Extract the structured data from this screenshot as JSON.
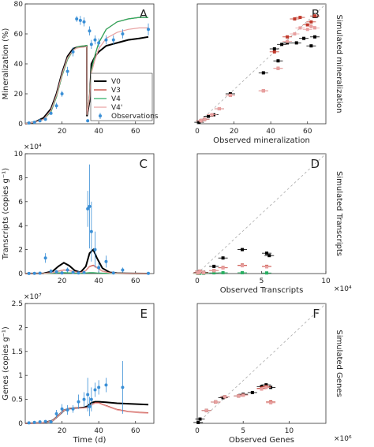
{
  "chart_data": [
    {
      "panel": "A",
      "type": "line",
      "ylabel": "Mineralization (%)",
      "xlabel": "",
      "xlim": [
        0,
        70
      ],
      "ylim": [
        0,
        80
      ],
      "xticks": [
        "20",
        "40",
        "60"
      ],
      "yticks": [
        "0",
        "20",
        "40",
        "60",
        "80"
      ],
      "legend": {
        "position": "lower-right",
        "entries": [
          "V0",
          "V3",
          "V4",
          "V4'",
          "Observations"
        ]
      },
      "series": [
        {
          "name": "V0",
          "color": "#000000",
          "x": [
            0,
            5,
            10,
            14,
            17,
            20,
            23,
            26,
            28,
            30,
            32,
            33.5,
            33.6,
            35,
            36,
            38,
            40,
            44,
            50,
            56,
            62,
            67
          ],
          "y": [
            0,
            1,
            4,
            10,
            20,
            34,
            45,
            50,
            51,
            51.5,
            51.6,
            51.7,
            5,
            15,
            40,
            45,
            48,
            52,
            54,
            56,
            57,
            58
          ]
        },
        {
          "name": "V3",
          "color": "#c0392b",
          "x": [
            0,
            5,
            10,
            14,
            17,
            20,
            23,
            26,
            28,
            30,
            32,
            33.5,
            33.6,
            35,
            36,
            38,
            40,
            44,
            50,
            56,
            62,
            67
          ],
          "y": [
            0,
            1,
            3,
            8,
            18,
            32,
            43,
            49,
            51,
            51.8,
            52,
            52.3,
            6,
            18,
            36,
            46,
            54,
            63,
            68,
            70,
            71,
            71
          ]
        },
        {
          "name": "V4",
          "color": "#27ae60",
          "x": [
            0,
            5,
            10,
            14,
            17,
            20,
            23,
            26,
            28,
            30,
            32,
            33.5,
            33.6,
            35,
            36,
            38,
            40,
            44,
            50,
            56,
            62,
            67
          ],
          "y": [
            0,
            1,
            3,
            8,
            18,
            32,
            43,
            49,
            51,
            51.8,
            52,
            52.3,
            6,
            18,
            36,
            46,
            54,
            63,
            68,
            70,
            71,
            71
          ]
        },
        {
          "name": "V4'",
          "color": "#e8a0a0",
          "x": [
            0,
            5,
            10,
            14,
            17,
            20,
            23,
            26,
            28,
            30,
            32,
            33.5,
            33.6,
            35,
            36,
            38,
            40,
            44,
            50,
            56,
            62,
            67
          ],
          "y": [
            0,
            1,
            3,
            9,
            19,
            33,
            44,
            49,
            50.5,
            51,
            51.2,
            51.5,
            6,
            17,
            34,
            43,
            50,
            57,
            61,
            63,
            64,
            64
          ]
        },
        {
          "name": "Observations",
          "color": "#3a8fd6",
          "x": [
            2,
            5,
            8,
            11,
            14,
            17,
            20,
            23,
            26,
            28,
            30,
            32,
            34,
            35,
            36,
            38,
            40,
            44,
            48,
            53,
            67
          ],
          "y": [
            0.5,
            1,
            2,
            3,
            7,
            12,
            20,
            35,
            48,
            70,
            69,
            68,
            2,
            62,
            53,
            56,
            54,
            56,
            56,
            60,
            63
          ],
          "err": [
            0.5,
            0.5,
            1,
            1,
            1,
            2,
            2,
            3,
            3,
            2,
            3,
            3,
            1,
            3,
            3,
            3,
            3,
            3,
            3,
            3,
            4
          ]
        }
      ]
    },
    {
      "panel": "B",
      "type": "scatter",
      "ylabel": "Simulated mineralization",
      "xlabel": "Observed mineralization",
      "xlim": [
        0,
        70
      ],
      "ylim": [
        0,
        80
      ],
      "xticks": [
        "0",
        "20",
        "40",
        "60"
      ],
      "series": [
        {
          "name": "V0",
          "color": "#000000",
          "x": [
            1,
            2,
            4,
            6,
            9,
            12,
            18,
            36,
            42,
            44,
            46,
            49,
            54,
            58,
            62,
            64
          ],
          "y": [
            1,
            2,
            3,
            5,
            6,
            10,
            20,
            34,
            50,
            42,
            53,
            54,
            54,
            57,
            52,
            58
          ]
        },
        {
          "name": "V3",
          "color": "#c0392b",
          "x": [
            2,
            4,
            8,
            12,
            18,
            36,
            42,
            44,
            49,
            53,
            56,
            60,
            62,
            64
          ],
          "y": [
            2,
            3,
            6,
            10,
            19,
            22,
            48,
            37,
            58,
            70,
            71,
            66,
            68,
            72
          ]
        },
        {
          "name": "V4'",
          "color": "#e8a0a0",
          "x": [
            2,
            4,
            8,
            12,
            18,
            36,
            44,
            49,
            53,
            56,
            60,
            62,
            64
          ],
          "y": [
            2,
            3,
            6,
            10,
            19,
            22,
            37,
            55,
            60,
            64,
            63,
            65,
            64
          ]
        }
      ]
    },
    {
      "panel": "C",
      "type": "line",
      "ylabel": "Transcripts (copies g⁻¹)",
      "xlabel": "",
      "multiplier": "×10⁴",
      "xlim": [
        0,
        70
      ],
      "ylim": [
        0,
        100000
      ],
      "xticks": [
        "20",
        "40",
        "60"
      ],
      "yticks": [
        "0",
        "2",
        "4",
        "6",
        "8",
        "10"
      ],
      "series": [
        {
          "name": "V0",
          "color": "#000000",
          "x": [
            0,
            10,
            15,
            18,
            21,
            24,
            27,
            30,
            33,
            35,
            37,
            39,
            42,
            46,
            50,
            55,
            60,
            67
          ],
          "y": [
            0,
            200,
            2000,
            6000,
            9000,
            6500,
            2500,
            1000,
            6000,
            17000,
            20000,
            13000,
            4500,
            1000,
            300,
            100,
            50,
            0
          ]
        },
        {
          "name": "V3",
          "color": "#c0392b",
          "x": [
            0,
            10,
            15,
            18,
            21,
            24,
            27,
            30,
            33,
            35,
            37,
            39,
            42,
            46,
            50,
            55,
            60,
            67
          ],
          "y": [
            0,
            100,
            800,
            2000,
            3000,
            2500,
            1500,
            800,
            2500,
            6000,
            7000,
            5000,
            2000,
            600,
            200,
            100,
            50,
            0
          ]
        },
        {
          "name": "V4",
          "color": "#27ae60",
          "x": [
            0,
            10,
            15,
            18,
            21,
            24,
            27,
            30,
            33,
            35,
            37,
            39,
            42,
            46,
            50,
            55,
            60,
            67
          ],
          "y": [
            0,
            50,
            300,
            600,
            800,
            600,
            400,
            300,
            500,
            700,
            700,
            500,
            300,
            150,
            80,
            40,
            20,
            0
          ]
        },
        {
          "name": "V4'",
          "color": "#e8a0a0",
          "x": [
            0,
            10,
            15,
            18,
            21,
            24,
            27,
            30,
            33,
            35,
            37,
            39,
            42,
            46,
            50,
            55,
            60,
            67
          ],
          "y": [
            0,
            100,
            700,
            1800,
            2800,
            2300,
            1400,
            700,
            2300,
            5600,
            6500,
            4700,
            1800,
            550,
            180,
            90,
            40,
            0
          ]
        },
        {
          "name": "Observations",
          "color": "#3a8fd6",
          "x": [
            2,
            5,
            8,
            11,
            14,
            17,
            20,
            23,
            26,
            29,
            32,
            34,
            35,
            36,
            38,
            40,
            44,
            48,
            53,
            67
          ],
          "y": [
            100,
            200,
            300,
            13000,
            2000,
            1500,
            500,
            3000,
            1000,
            500,
            800,
            54000,
            56000,
            35000,
            20000,
            5000,
            10000,
            500,
            3000,
            200
          ],
          "err": [
            200,
            200,
            300,
            4000,
            1500,
            1500,
            800,
            2000,
            1000,
            800,
            1000,
            15000,
            35000,
            25000,
            15000,
            4000,
            5000,
            1000,
            2000,
            500
          ]
        }
      ]
    },
    {
      "panel": "D",
      "type": "scatter",
      "ylabel": "Simulated Transcripts",
      "xlabel": "Observed Transcripts",
      "multiplier": "×10⁴",
      "xlim": [
        0,
        100000
      ],
      "ylim": [
        0,
        100000
      ],
      "xticks": [
        "0",
        "5",
        "10"
      ],
      "series": [
        {
          "name": "V0",
          "color": "#000000",
          "x": [
            500,
            1000,
            2000,
            5000,
            13000,
            20000,
            35000,
            54000,
            56000
          ],
          "y": [
            500,
            1000,
            2000,
            1000,
            6000,
            13000,
            20000,
            17000,
            15000
          ]
        },
        {
          "name": "V3",
          "color": "#c0392b",
          "x": [
            500,
            1000,
            2000,
            5000,
            13000,
            20000,
            35000,
            54000
          ],
          "y": [
            300,
            800,
            2000,
            700,
            2500,
            5000,
            7000,
            6000
          ]
        },
        {
          "name": "V4",
          "color": "#27ae60",
          "x": [
            500,
            1000,
            2000,
            5000,
            13000,
            20000,
            35000,
            54000
          ],
          "y": [
            100,
            200,
            300,
            200,
            600,
            700,
            700,
            500
          ]
        },
        {
          "name": "V4'",
          "color": "#e8a0a0",
          "x": [
            500,
            1000,
            2000,
            5000,
            13000,
            20000,
            35000,
            54000
          ],
          "y": [
            300,
            700,
            1800,
            600,
            2300,
            4700,
            6500,
            5600
          ]
        }
      ]
    },
    {
      "panel": "E",
      "type": "line",
      "ylabel": "Genes (copies g⁻¹)",
      "xlabel": "Time (d)",
      "multiplier": "×10⁷",
      "xlim": [
        0,
        70
      ],
      "ylim": [
        0,
        25000000
      ],
      "xticks": [
        "20",
        "40",
        "60"
      ],
      "yticks": [
        "0",
        "0.5",
        "1",
        "1.5",
        "2",
        "2.5"
      ],
      "series": [
        {
          "name": "V0",
          "color": "#000000",
          "x": [
            0,
            10,
            15,
            18,
            21,
            24,
            28,
            32,
            34,
            36,
            38,
            40,
            44,
            50,
            56,
            62,
            67
          ],
          "y": [
            0,
            100000,
            600000,
            1600000,
            2700000,
            3100000,
            3200000,
            3300000,
            3600000,
            4300000,
            4500000,
            4500000,
            4400000,
            4200000,
            4100000,
            4000000,
            3900000
          ]
        },
        {
          "name": "V3",
          "color": "#c0392b",
          "x": [
            0,
            10,
            15,
            18,
            21,
            24,
            28,
            32,
            34,
            36,
            38,
            40,
            44,
            50,
            56,
            62,
            67
          ],
          "y": [
            0,
            100000,
            600000,
            1600000,
            2700000,
            3100000,
            3200000,
            3200000,
            3300000,
            3800000,
            4300000,
            4300000,
            3700000,
            2900000,
            2500000,
            2300000,
            2200000
          ]
        },
        {
          "name": "V4'",
          "color": "#e8a0a0",
          "x": [
            0,
            10,
            15,
            18,
            21,
            24,
            28,
            32,
            34,
            36,
            38,
            40,
            44,
            50,
            56,
            62,
            67
          ],
          "y": [
            0,
            100000,
            600000,
            1600000,
            2700000,
            3100000,
            3200000,
            3200000,
            3300000,
            3800000,
            4200000,
            4200000,
            3600000,
            2800000,
            2400000,
            2200000,
            2100000
          ]
        },
        {
          "name": "Observations",
          "color": "#3a8fd6",
          "x": [
            2,
            5,
            8,
            11,
            14,
            17,
            20,
            23,
            26,
            29,
            32,
            34,
            35,
            36,
            38,
            40,
            44,
            53
          ],
          "y": [
            100000,
            200000,
            300000,
            400000,
            300000,
            2000000,
            3000000,
            2800000,
            3000000,
            4500000,
            5000000,
            6000000,
            3500000,
            5000000,
            7000000,
            7500000,
            8000000,
            7500000
          ],
          "err": [
            100000,
            100000,
            200000,
            200000,
            200000,
            800000,
            1000000,
            1000000,
            800000,
            1500000,
            1500000,
            3500000,
            2000000,
            2500000,
            1500000,
            1500000,
            1500000,
            5500000
          ]
        }
      ]
    },
    {
      "panel": "F",
      "type": "scatter",
      "ylabel": "Simulated Genes",
      "xlabel": "Observed Genes",
      "multiplier": "×10⁶",
      "xlim": [
        0,
        14000000
      ],
      "ylim": [
        0,
        14000000
      ],
      "xticks": [
        "0",
        "5",
        "10"
      ],
      "series": [
        {
          "name": "V0",
          "color": "#000000",
          "x": [
            100000,
            300000,
            1000000,
            2000000,
            2800000,
            3000000,
            4500000,
            5000000,
            6000000,
            7000000,
            7500000,
            8000000
          ],
          "y": [
            100000,
            500000,
            1500000,
            2500000,
            3000000,
            3100000,
            3200000,
            3400000,
            3600000,
            4300000,
            4500000,
            4200000
          ]
        },
        {
          "name": "V3",
          "color": "#c0392b",
          "x": [
            1000000,
            2000000,
            3000000,
            4500000,
            5000000,
            7000000,
            7500000,
            8000000
          ],
          "y": [
            1500000,
            2500000,
            3100000,
            3200000,
            3300000,
            4100000,
            4300000,
            2500000
          ]
        },
        {
          "name": "V4'",
          "color": "#e8a0a0",
          "x": [
            1000000,
            2000000,
            3000000,
            4500000,
            5000000,
            7000000,
            7500000,
            8000000
          ],
          "y": [
            1500000,
            2500000,
            3100000,
            3200000,
            3300000,
            4000000,
            4200000,
            2400000
          ]
        }
      ]
    }
  ],
  "labels": {
    "panelA": "A",
    "panelB": "B",
    "panelC": "C",
    "panelD": "D",
    "panelE": "E",
    "panelF": "F"
  }
}
